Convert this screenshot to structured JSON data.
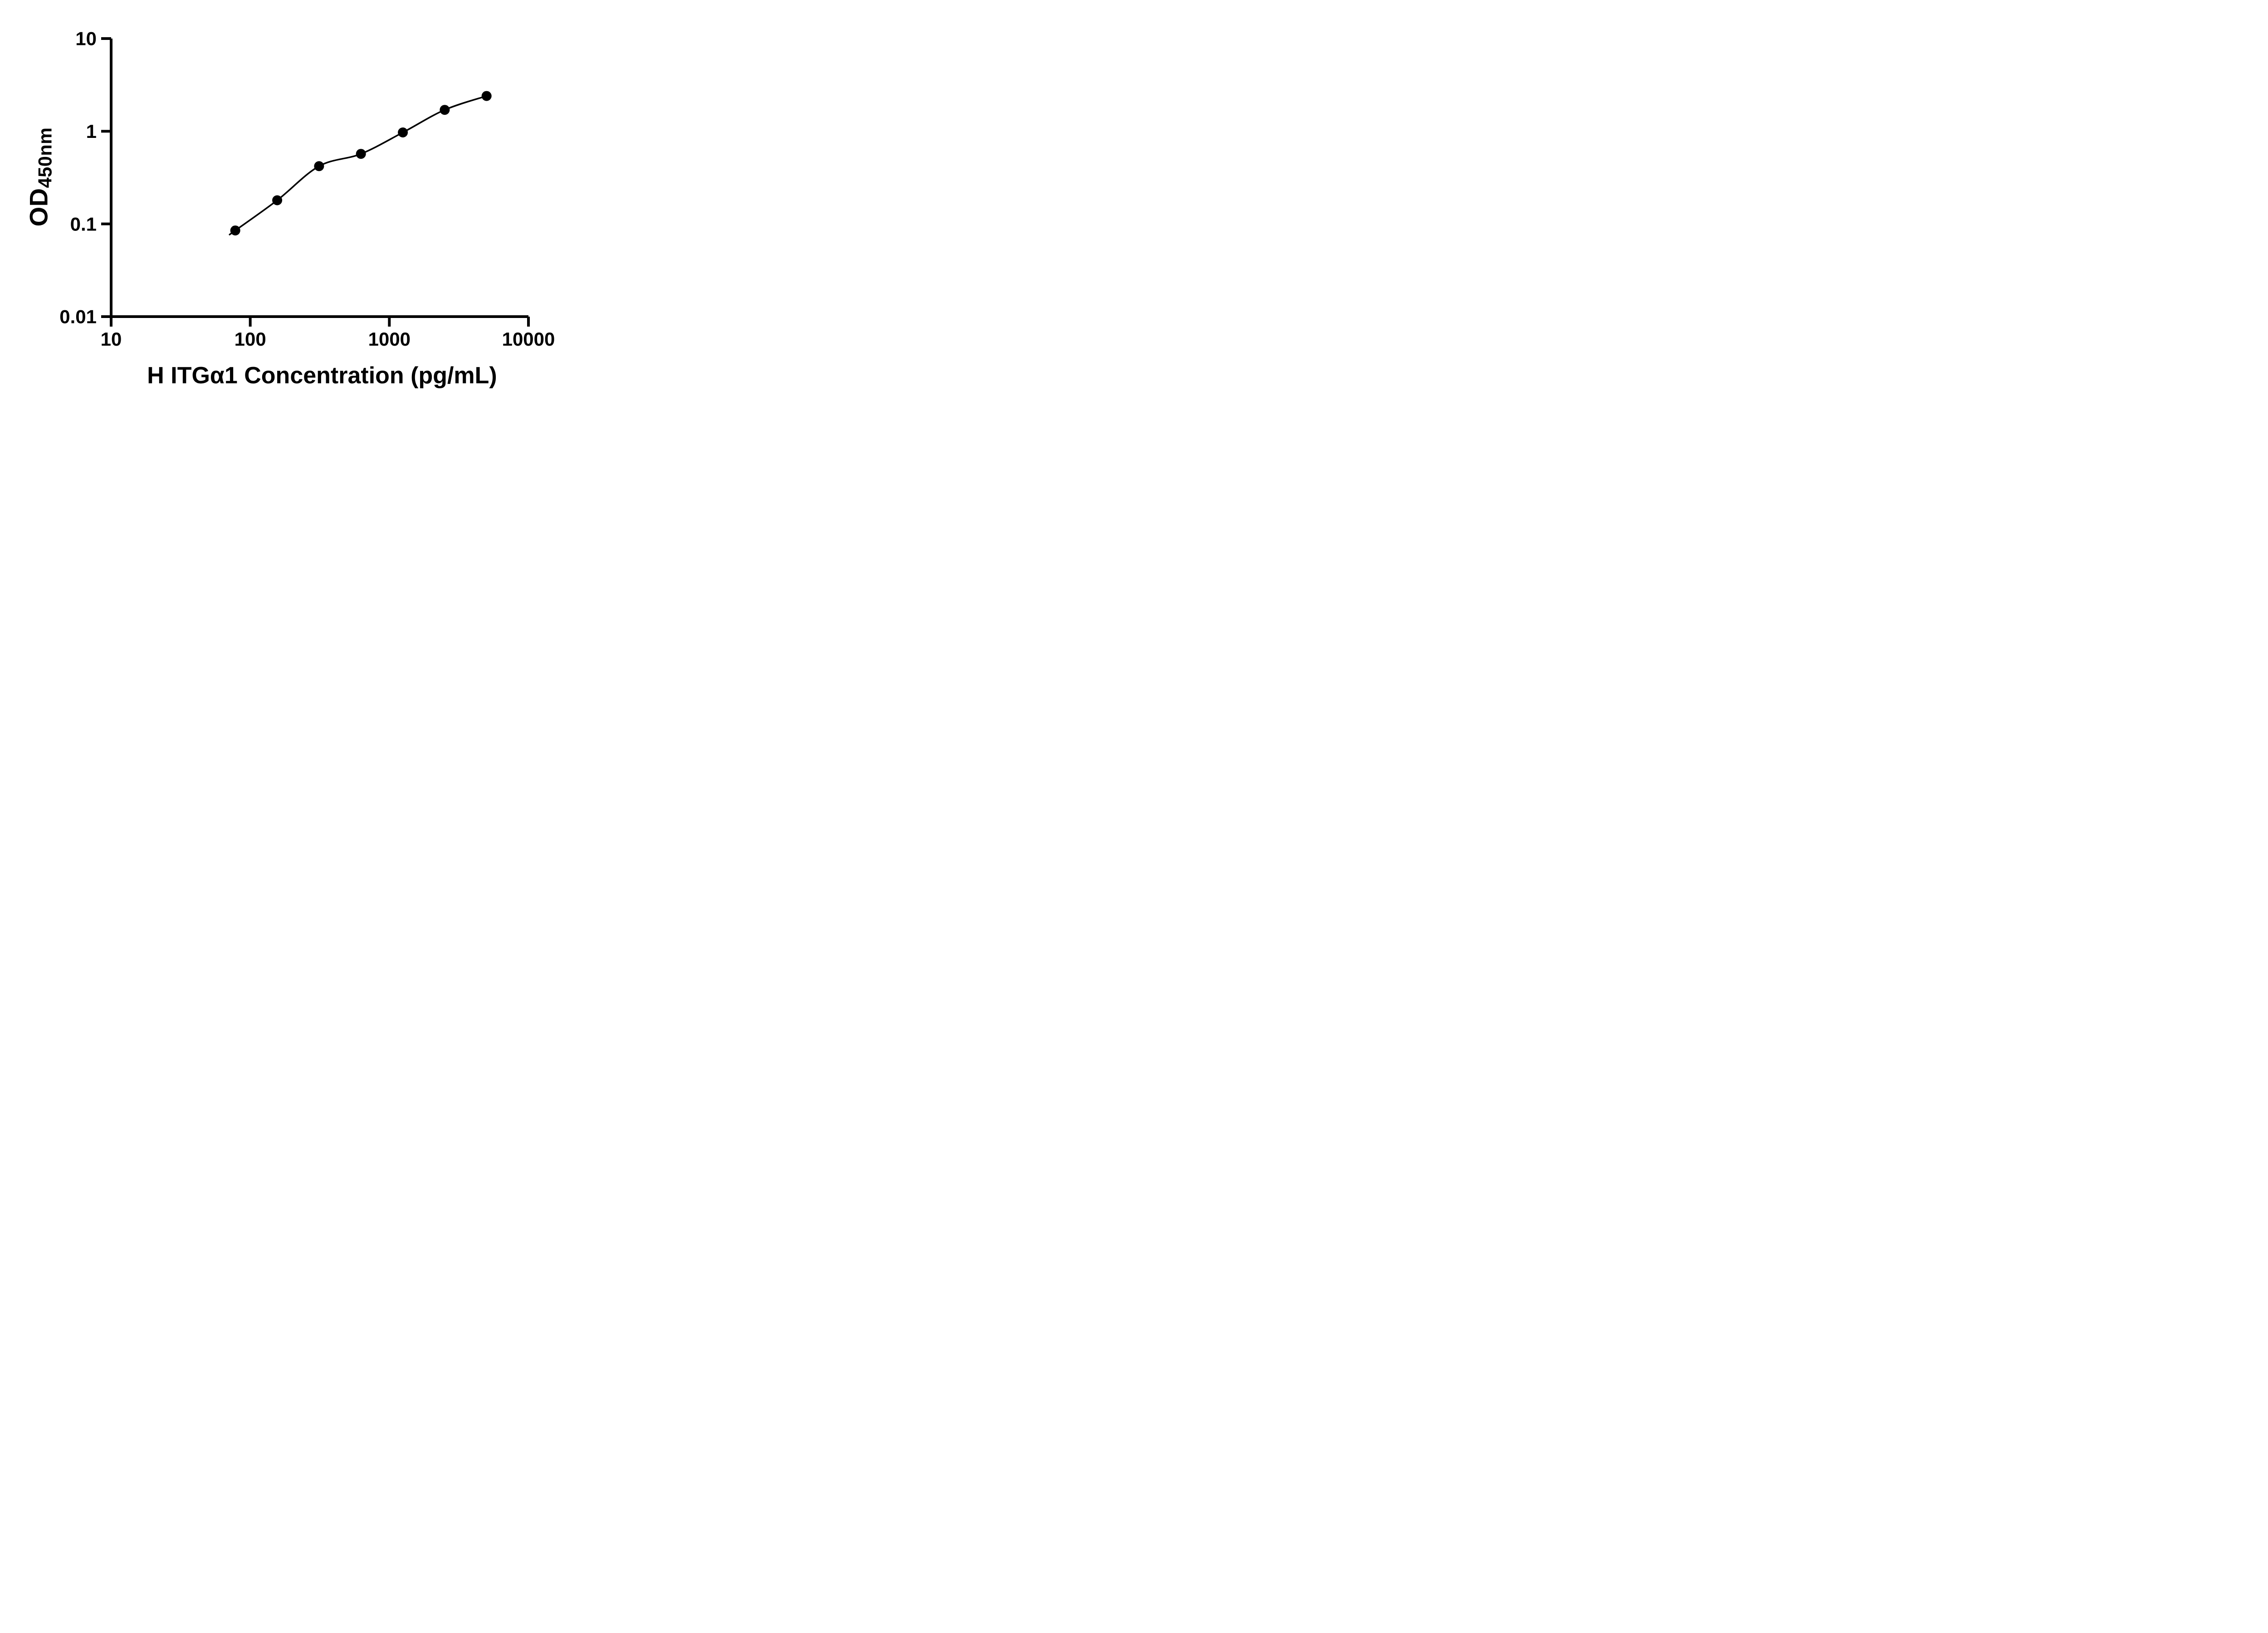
{
  "chart_data": {
    "type": "scatter",
    "title": "",
    "xlabel": "H ITGα1 Concentration (pg/mL)",
    "ylabel": "OD",
    "ylabel_sub": "450nm",
    "x_scale": "log10",
    "y_scale": "log10",
    "xlim": [
      10,
      10000
    ],
    "ylim": [
      0.01,
      10
    ],
    "x_ticks": [
      10,
      100,
      1000,
      10000
    ],
    "x_tick_labels": [
      "10",
      "100",
      "1000",
      "10000"
    ],
    "y_ticks": [
      0.01,
      0.1,
      1,
      10
    ],
    "y_tick_labels": [
      "0.01",
      "0.1",
      "1",
      "10"
    ],
    "grid": false,
    "legend": false,
    "series": [
      {
        "x": [
          78.1,
          156.3,
          312.5,
          625,
          1250,
          2500,
          5000
        ],
        "y": [
          0.085,
          0.18,
          0.42,
          0.57,
          0.97,
          1.7,
          2.4
        ],
        "marker": "circle",
        "marker_color": "#000000",
        "line": "smooth-fit",
        "line_color": "#000000"
      }
    ]
  },
  "colors": {
    "background": "#ffffff",
    "axis": "#000000",
    "text": "#000000"
  }
}
